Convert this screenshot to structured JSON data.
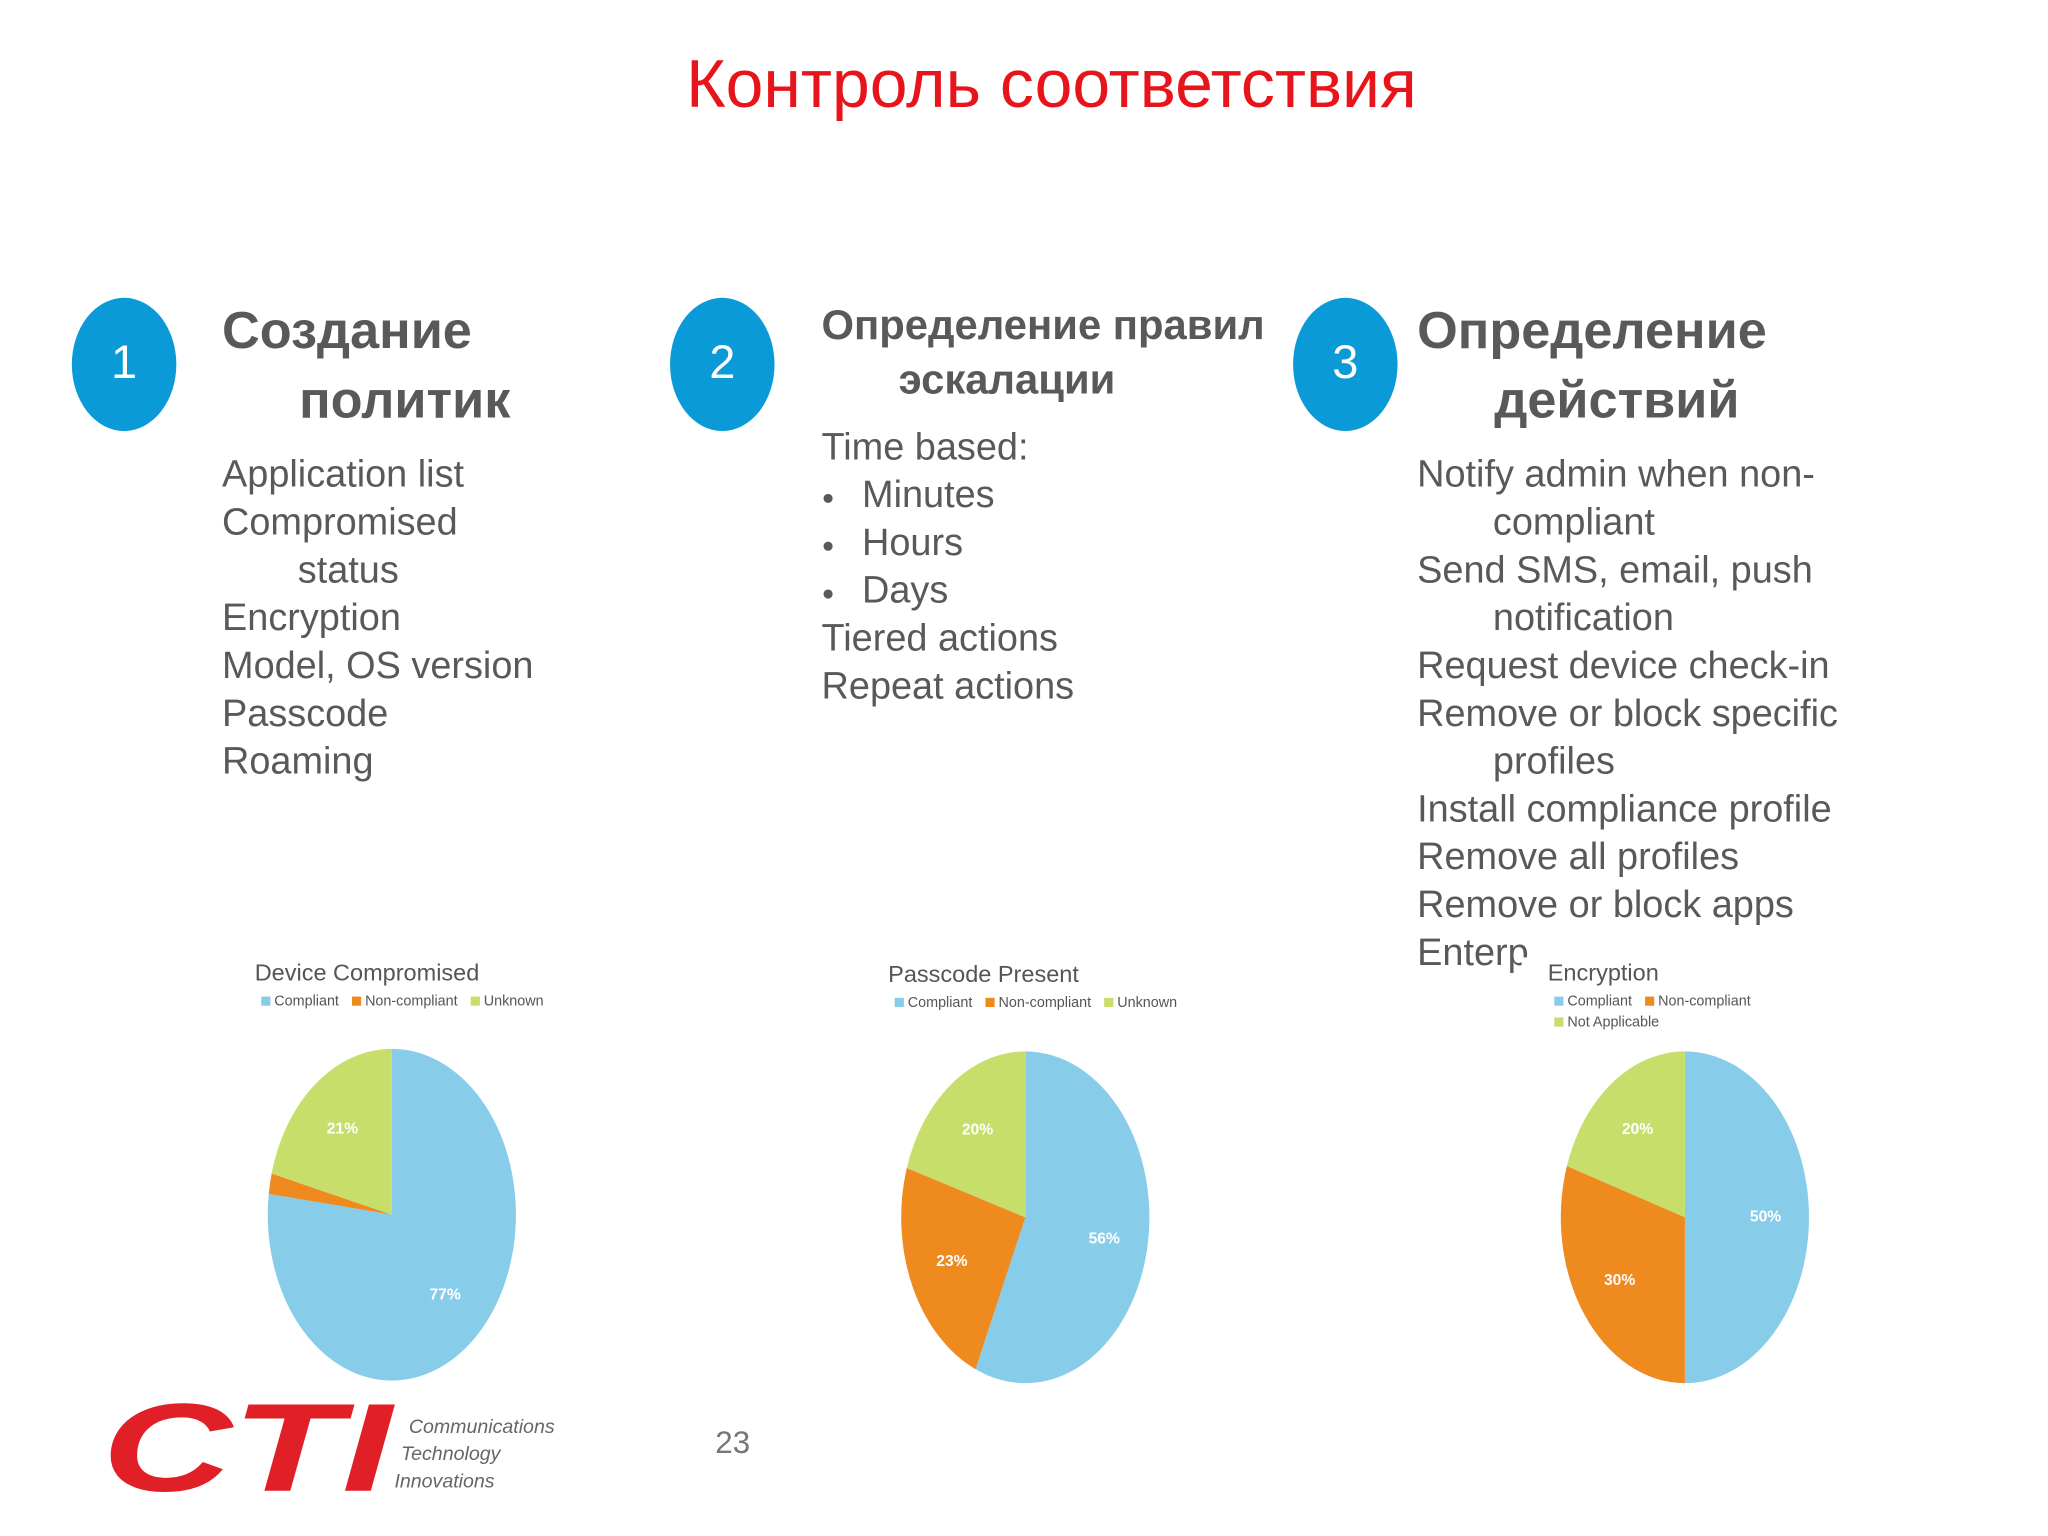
{
  "title": "Контроль соответствия",
  "sections": [
    {
      "number": "1",
      "heading": [
        "Создание",
        "политик"
      ],
      "items": [
        {
          "lines": [
            "Application list"
          ]
        },
        {
          "lines": [
            "Compromised",
            "status"
          ]
        },
        {
          "lines": [
            "Encryption"
          ]
        },
        {
          "lines": [
            "Model, OS version"
          ]
        },
        {
          "lines": [
            "Passcode"
          ]
        },
        {
          "lines": [
            "Roaming"
          ]
        }
      ]
    },
    {
      "number": "2",
      "heading": [
        "Определение правил",
        "эскалации"
      ],
      "items": [
        {
          "lines": [
            "Time based:"
          ]
        },
        {
          "lines": [
            "Minutes"
          ],
          "bullet": true
        },
        {
          "lines": [
            "Hours"
          ],
          "bullet": true
        },
        {
          "lines": [
            "Days"
          ],
          "bullet": true
        },
        {
          "lines": [
            "Tiered actions"
          ]
        },
        {
          "lines": [
            "Repeat actions"
          ]
        }
      ]
    },
    {
      "number": "3",
      "heading": [
        "Определение",
        "действий"
      ],
      "items": [
        {
          "lines": [
            "Notify admin when non-",
            "compliant"
          ]
        },
        {
          "lines": [
            "Send SMS, email, push",
            "notification"
          ]
        },
        {
          "lines": [
            "Request device check-in"
          ]
        },
        {
          "lines": [
            "Remove  or block specific",
            "profiles"
          ]
        },
        {
          "lines": [
            "Install compliance profile"
          ]
        },
        {
          "lines": [
            "Remove all profiles"
          ]
        },
        {
          "lines": [
            "Remove or block apps"
          ]
        },
        {
          "lines": [
            "Enterp"
          ]
        }
      ]
    }
  ],
  "chart_data": [
    {
      "type": "pie",
      "title": "Device Compromised",
      "categories": [
        "Compliant",
        "Non-compliant",
        "Unknown"
      ],
      "values": [
        77,
        2,
        21
      ],
      "value_labels": [
        "77%",
        null,
        "21%"
      ],
      "colors": [
        "#87cde9",
        "#ee8a1e",
        "#c7de6a"
      ]
    },
    {
      "type": "pie",
      "title": "Passcode Present",
      "categories": [
        "Compliant",
        "Non-compliant",
        "Unknown"
      ],
      "values": [
        56,
        23,
        20
      ],
      "value_labels": [
        "56%",
        "23%",
        "20%"
      ],
      "colors": [
        "#87cde9",
        "#ee8a1e",
        "#c7de6a"
      ]
    },
    {
      "type": "pie",
      "title": "Encryption",
      "categories": [
        "Compliant",
        "Non-compliant",
        "Not Applicable"
      ],
      "values": [
        50,
        30,
        20
      ],
      "value_labels": [
        "50%",
        "30%",
        "20%"
      ],
      "colors": [
        "#87cde9",
        "#ee8a1e",
        "#c7de6a"
      ]
    }
  ],
  "footer": {
    "logo": "CTI",
    "company": [
      "Communications",
      "Technology",
      "Innovations"
    ],
    "page_number": "23"
  }
}
